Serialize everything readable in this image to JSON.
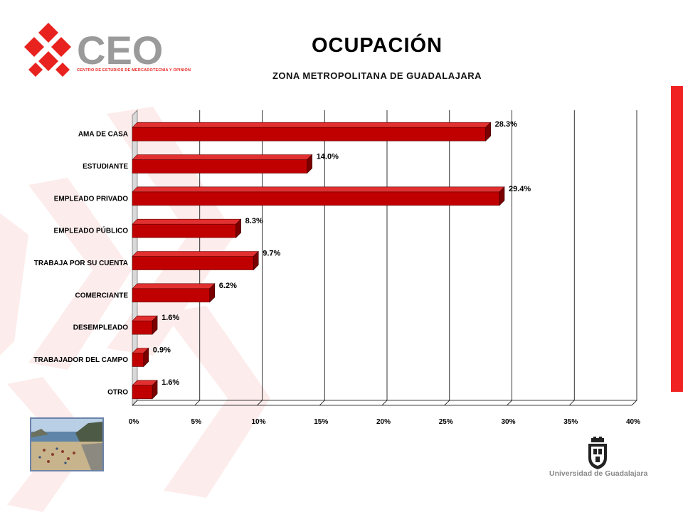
{
  "header": {
    "title": "OCUPACIÓN",
    "subtitle": "ZONA METROPOLITANA DE GUADALAJARA"
  },
  "logo": {
    "name": "CEO",
    "tagline": "CENTRO DE ESTUDIOS DE MERCADOTECNIA Y OPINIÓN",
    "color_red": "#e8231f",
    "color_gray": "#9a9a9a"
  },
  "footer": {
    "university": "Universidad de Guadalajara"
  },
  "colors": {
    "bar": "#c00000",
    "bar_top": "#e23030",
    "bar_side": "#7a0000",
    "accent_strip": "#f02222"
  },
  "chart_data": {
    "type": "bar",
    "orientation": "horizontal",
    "categories": [
      "AMA DE CASA",
      "ESTUDIANTE",
      "EMPLEADO PRIVADO",
      "EMPLEADO PÚBLICO",
      "TRABAJA POR SU CUENTA",
      "COMERCIANTE",
      "DESEMPLEADO",
      "TRABAJADOR DEL CAMPO",
      "OTRO"
    ],
    "values": [
      28.3,
      14.0,
      29.4,
      8.3,
      9.7,
      6.2,
      1.6,
      0.9,
      1.6
    ],
    "data_labels": [
      "28.3%",
      "14.0%",
      "29.4%",
      "8.3%",
      "9.7%",
      "6.2%",
      "1.6%",
      "0.9%",
      "1.6%"
    ],
    "xticks": [
      "0%",
      "5%",
      "10%",
      "15%",
      "20%",
      "25%",
      "30%",
      "35%",
      "40%"
    ],
    "xlim": [
      0,
      40
    ],
    "grid": "vertical"
  }
}
